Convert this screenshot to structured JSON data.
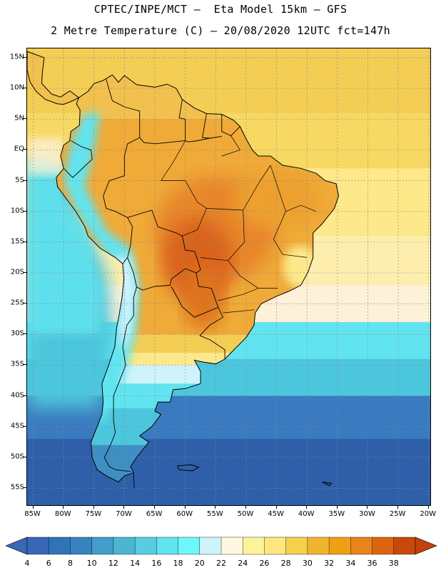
{
  "header": {
    "line1": "CPTEC/INPE/MCT –  Eta Model 15km – GFS",
    "line2": "2 Metre Temperature (C) – 20/08/2020 12UTC fct=147h"
  },
  "map": {
    "lon_range": [
      -86,
      -19.5
    ],
    "lat_range": [
      16.5,
      -58
    ],
    "lat_labels": [
      "15N",
      "10N",
      "5N",
      "EQ",
      "5S",
      "10S",
      "15S",
      "20S",
      "25S",
      "30S",
      "35S",
      "40S",
      "45S",
      "50S",
      "55S"
    ],
    "lat_values": [
      15,
      10,
      5,
      0,
      -5,
      -10,
      -15,
      -20,
      -25,
      -30,
      -35,
      -40,
      -45,
      -50,
      -55
    ],
    "lon_labels": [
      "85W",
      "80W",
      "75W",
      "70W",
      "65W",
      "60W",
      "55W",
      "50W",
      "45W",
      "40W",
      "35W",
      "30W",
      "25W",
      "20W"
    ],
    "lon_values": [
      -85,
      -80,
      -75,
      -70,
      -65,
      -60,
      -55,
      -50,
      -45,
      -40,
      -35,
      -30,
      -25,
      -20
    ]
  },
  "colorbar": {
    "labels": [
      "4",
      "6",
      "8",
      "10",
      "12",
      "14",
      "16",
      "18",
      "20",
      "22",
      "24",
      "26",
      "28",
      "30",
      "32",
      "34",
      "36",
      "38"
    ],
    "colors": [
      "#3a66b6",
      "#2f74b8",
      "#3883bf",
      "#429dc9",
      "#4cb6d2",
      "#58cce0",
      "#61e3ee",
      "#6ef7fb",
      "#cff3fb",
      "#fff8e0",
      "#fff39a",
      "#ffe680",
      "#f5d04a",
      "#efb52f",
      "#f0a015",
      "#e8841a",
      "#dc6512",
      "#c8480a"
    ],
    "under_color": "#3a66b6",
    "over_color": "#c0420c"
  },
  "colors": {
    "ocean_cold": "#2e5fa8",
    "ocean_mid": "#3a7ac0",
    "ocean_cyan": "#4cc6dc",
    "ocean_aqua": "#62e4f0",
    "ocean_pale": "#fdf1d8",
    "ocean_warm": "#fde88a",
    "ocean_tropic": "#f4cd55",
    "land_hot": "#e8862a",
    "land_very_hot": "#d9641a",
    "andes_cold": "#62e4f0"
  }
}
